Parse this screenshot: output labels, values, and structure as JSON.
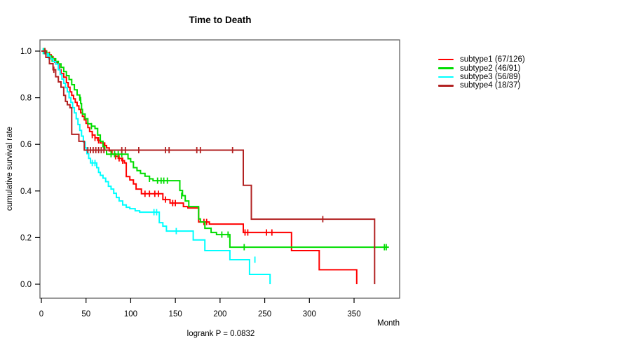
{
  "chart_data": {
    "type": "line",
    "variant": "kaplan-meier-step",
    "title": "Time to Death",
    "xlabel": "Month",
    "ylabel": "cumulative survival rate",
    "footnote": "logrank P = 0.0832",
    "xlim": [
      0,
      400
    ],
    "ylim": [
      0.0,
      1.0
    ],
    "x_ticks": [
      0,
      50,
      100,
      150,
      200,
      250,
      300,
      350
    ],
    "y_ticks": [
      0.0,
      0.2,
      0.4,
      0.6,
      0.8,
      1.0
    ],
    "grid": false,
    "legend_position": "right-outside",
    "series": [
      {
        "name": "subtype1",
        "label": "subtype1 (67/126)",
        "color": "#ff0000",
        "end_month": 353,
        "steps": [
          [
            0,
            1.0
          ],
          [
            5,
            0.992
          ],
          [
            8,
            0.984
          ],
          [
            11,
            0.976
          ],
          [
            13,
            0.968
          ],
          [
            15,
            0.952
          ],
          [
            18,
            0.944
          ],
          [
            20,
            0.92
          ],
          [
            22,
            0.904
          ],
          [
            25,
            0.888
          ],
          [
            28,
            0.865
          ],
          [
            30,
            0.845
          ],
          [
            32,
            0.825
          ],
          [
            34,
            0.81
          ],
          [
            36,
            0.795
          ],
          [
            38,
            0.78
          ],
          [
            40,
            0.765
          ],
          [
            42,
            0.75
          ],
          [
            44,
            0.735
          ],
          [
            46,
            0.72
          ],
          [
            48,
            0.705
          ],
          [
            50,
            0.69
          ],
          [
            52,
            0.672
          ],
          [
            54,
            0.655
          ],
          [
            57,
            0.64
          ],
          [
            60,
            0.628
          ],
          [
            63,
            0.617
          ],
          [
            66,
            0.606
          ],
          [
            70,
            0.595
          ],
          [
            73,
            0.585
          ],
          [
            76,
            0.572
          ],
          [
            79,
            0.558
          ],
          [
            82,
            0.549
          ],
          [
            86,
            0.54
          ],
          [
            90,
            0.53
          ],
          [
            93,
            0.52
          ],
          [
            95,
            0.462
          ],
          [
            99,
            0.447
          ],
          [
            103,
            0.43
          ],
          [
            106,
            0.408
          ],
          [
            112,
            0.388
          ],
          [
            136,
            0.363
          ],
          [
            144,
            0.348
          ],
          [
            159,
            0.333
          ],
          [
            164,
            0.327
          ],
          [
            176,
            0.267
          ],
          [
            188,
            0.258
          ],
          [
            226,
            0.222
          ],
          [
            280,
            0.144
          ],
          [
            311,
            0.062
          ],
          [
            353,
            0
          ]
        ],
        "censor_marks": [
          [
            5,
            0.992
          ],
          [
            9,
            0.984
          ],
          [
            57,
            0.64
          ],
          [
            60,
            0.628
          ],
          [
            64,
            0.617
          ],
          [
            71,
            0.595
          ],
          [
            83,
            0.549
          ],
          [
            87,
            0.54
          ],
          [
            91,
            0.53
          ],
          [
            116,
            0.388
          ],
          [
            121,
            0.388
          ],
          [
            127,
            0.388
          ],
          [
            131,
            0.388
          ],
          [
            139,
            0.363
          ],
          [
            147,
            0.348
          ],
          [
            150,
            0.348
          ],
          [
            182,
            0.267
          ],
          [
            185,
            0.267
          ],
          [
            228,
            0.222
          ],
          [
            231,
            0.222
          ],
          [
            252,
            0.222
          ],
          [
            258,
            0.222
          ]
        ]
      },
      {
        "name": "subtype2",
        "label": "subtype2 (46/91)",
        "color": "#00dd00",
        "end_month": 389,
        "steps": [
          [
            0,
            1.0
          ],
          [
            6,
            0.989
          ],
          [
            9,
            0.978
          ],
          [
            12,
            0.967
          ],
          [
            16,
            0.956
          ],
          [
            19,
            0.945
          ],
          [
            22,
            0.93
          ],
          [
            25,
            0.912
          ],
          [
            28,
            0.895
          ],
          [
            31,
            0.878
          ],
          [
            34,
            0.856
          ],
          [
            37,
            0.834
          ],
          [
            40,
            0.812
          ],
          [
            43,
            0.79
          ],
          [
            44,
            0.775
          ],
          [
            45,
            0.75
          ],
          [
            46,
            0.73
          ],
          [
            49,
            0.71
          ],
          [
            52,
            0.688
          ],
          [
            56,
            0.678
          ],
          [
            60,
            0.668
          ],
          [
            63,
            0.64
          ],
          [
            66,
            0.613
          ],
          [
            69,
            0.59
          ],
          [
            71,
            0.575
          ],
          [
            73,
            0.558
          ],
          [
            97,
            0.538
          ],
          [
            100,
            0.525
          ],
          [
            103,
            0.5
          ],
          [
            107,
            0.487
          ],
          [
            111,
            0.475
          ],
          [
            116,
            0.463
          ],
          [
            121,
            0.452
          ],
          [
            125,
            0.444
          ],
          [
            155,
            0.402
          ],
          [
            158,
            0.38
          ],
          [
            161,
            0.357
          ],
          [
            165,
            0.333
          ],
          [
            176,
            0.28
          ],
          [
            178,
            0.267
          ],
          [
            183,
            0.24
          ],
          [
            190,
            0.222
          ],
          [
            196,
            0.213
          ],
          [
            211,
            0.159
          ]
        ],
        "censor_marks": [
          [
            3,
            1.0
          ],
          [
            12,
            0.967
          ],
          [
            44,
            0.79
          ],
          [
            56,
            0.678
          ],
          [
            78,
            0.558
          ],
          [
            82,
            0.558
          ],
          [
            86,
            0.558
          ],
          [
            90,
            0.558
          ],
          [
            121,
            0.452
          ],
          [
            130,
            0.444
          ],
          [
            134,
            0.444
          ],
          [
            137,
            0.444
          ],
          [
            141,
            0.444
          ],
          [
            157,
            0.38
          ],
          [
            202,
            0.213
          ],
          [
            209,
            0.213
          ],
          [
            227,
            0.159
          ],
          [
            384,
            0.159
          ],
          [
            386,
            0.159
          ]
        ]
      },
      {
        "name": "subtype3",
        "label": "subtype3 (56/89)",
        "color": "#00ffff",
        "end_month": 256,
        "steps": [
          [
            0,
            1.0
          ],
          [
            4,
            0.989
          ],
          [
            7,
            0.978
          ],
          [
            10,
            0.966
          ],
          [
            13,
            0.955
          ],
          [
            16,
            0.944
          ],
          [
            19,
            0.92
          ],
          [
            21,
            0.9
          ],
          [
            23,
            0.88
          ],
          [
            25,
            0.862
          ],
          [
            27,
            0.843
          ],
          [
            29,
            0.825
          ],
          [
            31,
            0.8
          ],
          [
            33,
            0.78
          ],
          [
            35,
            0.757
          ],
          [
            37,
            0.735
          ],
          [
            39,
            0.71
          ],
          [
            41,
            0.685
          ],
          [
            43,
            0.66
          ],
          [
            45,
            0.635
          ],
          [
            47,
            0.61
          ],
          [
            49,
            0.585
          ],
          [
            51,
            0.56
          ],
          [
            53,
            0.54
          ],
          [
            55,
            0.52
          ],
          [
            62,
            0.5
          ],
          [
            64,
            0.48
          ],
          [
            66,
            0.467
          ],
          [
            69,
            0.455
          ],
          [
            72,
            0.44
          ],
          [
            75,
            0.42
          ],
          [
            78,
            0.408
          ],
          [
            81,
            0.39
          ],
          [
            84,
            0.372
          ],
          [
            87,
            0.357
          ],
          [
            91,
            0.34
          ],
          [
            95,
            0.33
          ],
          [
            99,
            0.324
          ],
          [
            105,
            0.315
          ],
          [
            110,
            0.309
          ],
          [
            132,
            0.264
          ],
          [
            136,
            0.249
          ],
          [
            140,
            0.228
          ],
          [
            170,
            0.19
          ],
          [
            183,
            0.144
          ],
          [
            211,
            0.105
          ],
          [
            233,
            0.042
          ],
          [
            256,
            0
          ]
        ],
        "censor_marks": [
          [
            2,
            1.0
          ],
          [
            8,
            0.978
          ],
          [
            57,
            0.52
          ],
          [
            60,
            0.52
          ],
          [
            126,
            0.309
          ],
          [
            129,
            0.309
          ],
          [
            151,
            0.228
          ],
          [
            239,
            0.105
          ]
        ]
      },
      {
        "name": "subtype4",
        "label": "subtype4 (18/37)",
        "color": "#b22222",
        "end_month": 373,
        "steps": [
          [
            0,
            1.0
          ],
          [
            5,
            0.973
          ],
          [
            9,
            0.946
          ],
          [
            13,
            0.92
          ],
          [
            16,
            0.89
          ],
          [
            19,
            0.868
          ],
          [
            22,
            0.845
          ],
          [
            25,
            0.81
          ],
          [
            27,
            0.784
          ],
          [
            29,
            0.77
          ],
          [
            32,
            0.757
          ],
          [
            34,
            0.643
          ],
          [
            42,
            0.613
          ],
          [
            48,
            0.575
          ],
          [
            226,
            0.424
          ],
          [
            235,
            0.279
          ],
          [
            373,
            0
          ]
        ],
        "censor_marks": [
          [
            4,
            1.0
          ],
          [
            14,
            0.92
          ],
          [
            52,
            0.575
          ],
          [
            55,
            0.575
          ],
          [
            58,
            0.575
          ],
          [
            61,
            0.575
          ],
          [
            64,
            0.575
          ],
          [
            67,
            0.575
          ],
          [
            70,
            0.575
          ],
          [
            90,
            0.575
          ],
          [
            94,
            0.575
          ],
          [
            109,
            0.575
          ],
          [
            139,
            0.575
          ],
          [
            143,
            0.575
          ],
          [
            174,
            0.575
          ],
          [
            178,
            0.575
          ],
          [
            214,
            0.575
          ],
          [
            315,
            0.279
          ]
        ]
      }
    ]
  }
}
